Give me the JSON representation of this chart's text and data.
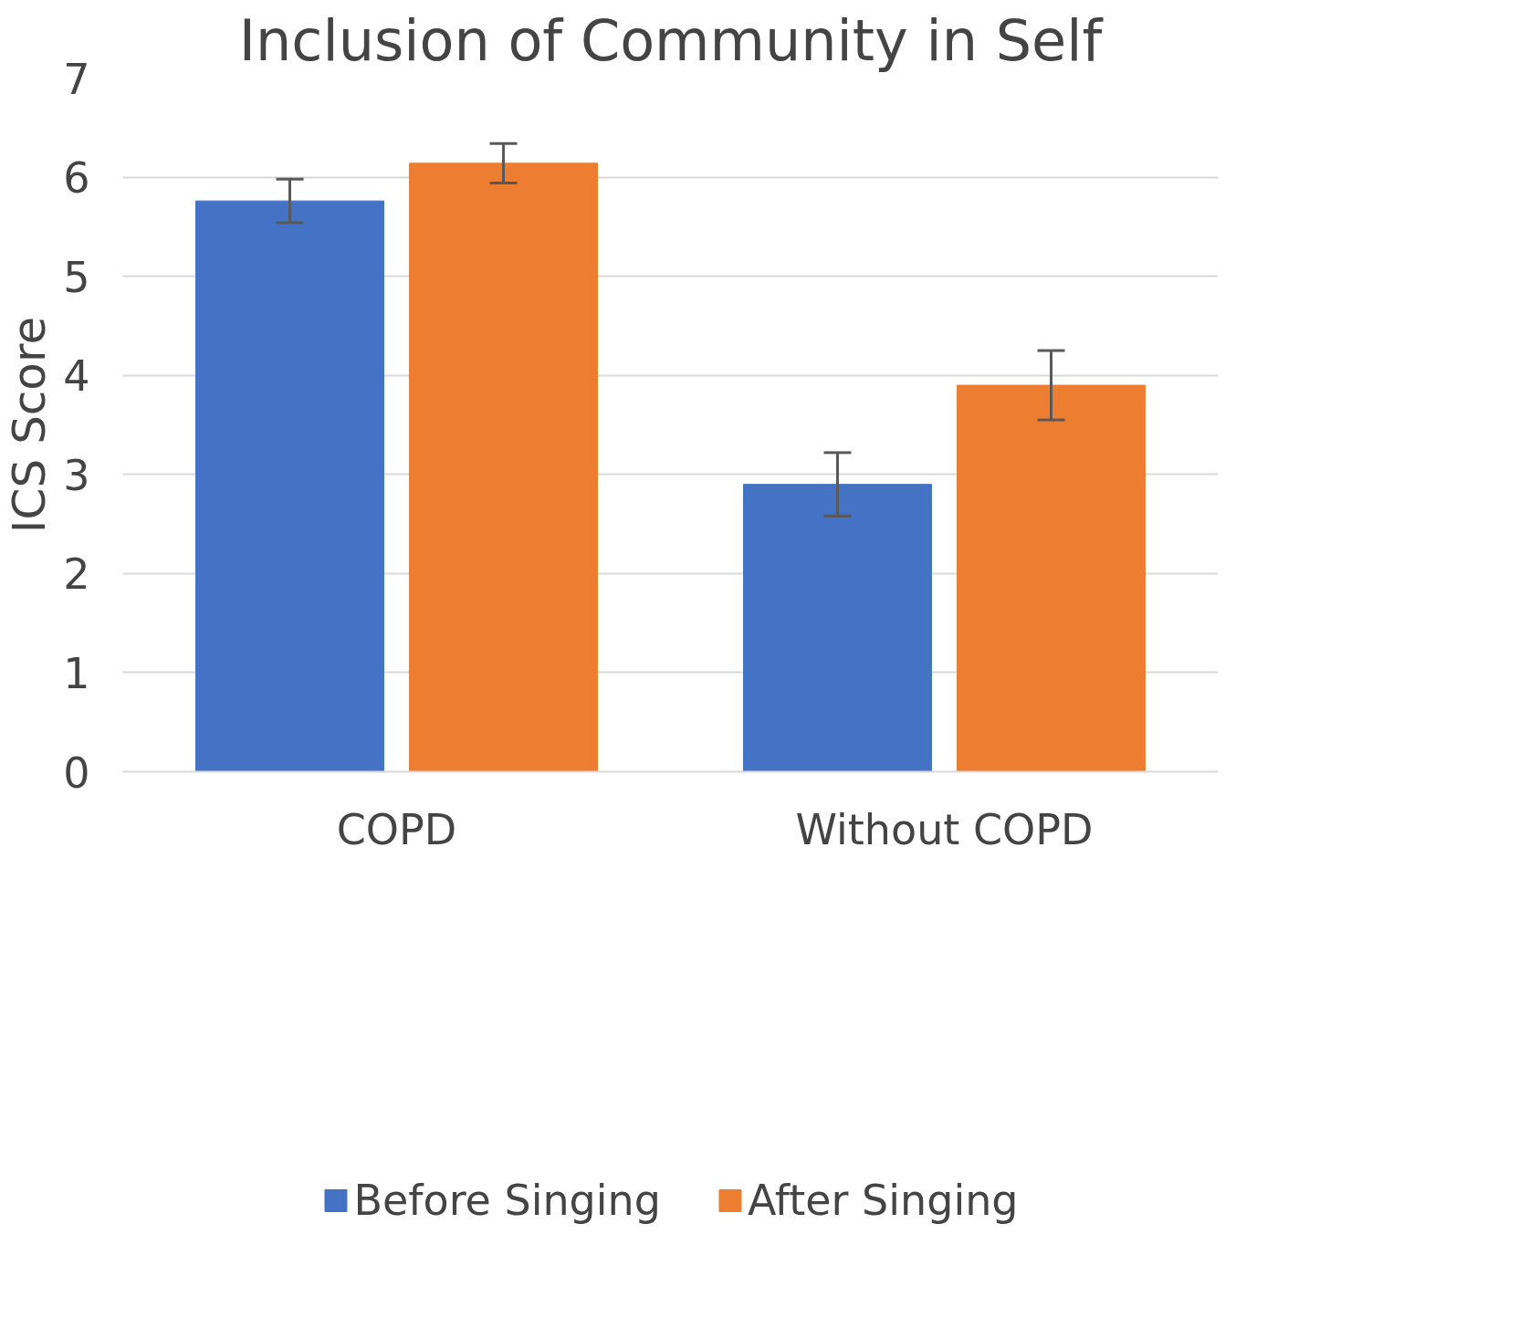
{
  "chart_data": {
    "type": "bar",
    "title": "Inclusion of Community in Self",
    "ylabel": "ICS Score",
    "categories": [
      "COPD",
      "Without COPD"
    ],
    "series": [
      {
        "name": "Before Singing",
        "color": "#4472c4",
        "values": [
          5.76,
          2.9
        ],
        "errors": [
          0.22,
          0.32
        ]
      },
      {
        "name": "After Singing",
        "color": "#ed7d31",
        "values": [
          6.14,
          3.9
        ],
        "errors": [
          0.2,
          0.35
        ]
      }
    ],
    "ylim": [
      0,
      7
    ],
    "yticks": [
      0,
      1,
      2,
      3,
      4,
      5,
      6,
      7
    ],
    "grid": "y",
    "legend": "bottom"
  }
}
